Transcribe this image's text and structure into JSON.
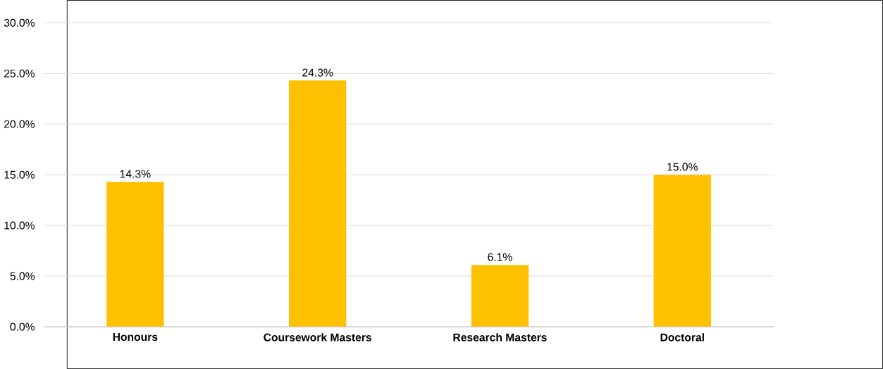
{
  "chart_data": {
    "type": "bar",
    "categories": [
      "Honours",
      "Coursework Masters",
      "Research Masters",
      "Doctoral"
    ],
    "values": [
      14.3,
      24.3,
      6.1,
      15.0
    ],
    "value_labels": [
      "14.3%",
      "24.3%",
      "6.1%",
      "15.0%"
    ],
    "color": "#ffc000",
    "ylim": [
      0,
      30
    ],
    "yticks": [
      {
        "value": 0,
        "label": "0.0%"
      },
      {
        "value": 5,
        "label": "5.0%"
      },
      {
        "value": 10,
        "label": "10.0%"
      },
      {
        "value": 15,
        "label": "15.0%"
      },
      {
        "value": 20,
        "label": "20.0%"
      },
      {
        "value": 25,
        "label": "25.0%"
      },
      {
        "value": 30,
        "label": "30.0%"
      }
    ],
    "grid": "y"
  }
}
